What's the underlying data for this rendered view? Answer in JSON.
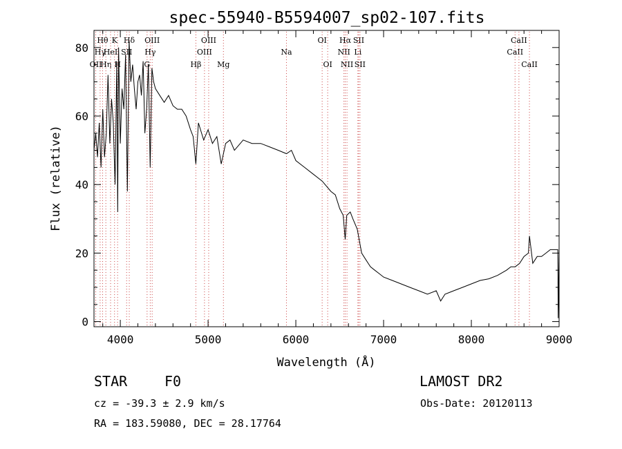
{
  "chart_data": {
    "type": "line",
    "title": "spec-55940-B5594007_sp02-107.fits",
    "xlabel": "Wavelength (Å)",
    "ylabel": "Flux (relative)",
    "xlim": [
      3700,
      9000
    ],
    "ylim": [
      -1.5,
      85
    ],
    "x_ticks": [
      4000,
      5000,
      6000,
      7000,
      8000,
      9000
    ],
    "y_ticks": [
      0,
      20,
      40,
      60,
      80
    ],
    "grid": false,
    "series": [
      {
        "x": [
          3700,
          3720,
          3740,
          3760,
          3780,
          3800,
          3820,
          3840,
          3860,
          3880,
          3900,
          3920,
          3940,
          3960,
          3970,
          3980,
          4000,
          4020,
          4040,
          4060,
          4080,
          4100,
          4120,
          4140,
          4160,
          4180,
          4200,
          4220,
          4240,
          4260,
          4280,
          4300,
          4320,
          4340,
          4360,
          4380,
          4400,
          4450,
          4500,
          4550,
          4600,
          4650,
          4700,
          4750,
          4800,
          4830,
          4861,
          4890,
          4950,
          5000,
          5050,
          5100,
          5150,
          5200,
          5250,
          5300,
          5400,
          5500,
          5600,
          5700,
          5800,
          5893,
          5950,
          6000,
          6100,
          6200,
          6300,
          6400,
          6450,
          6500,
          6540,
          6563,
          6580,
          6620,
          6650,
          6700,
          6750,
          6800,
          6850,
          6900,
          6950,
          7000,
          7100,
          7200,
          7300,
          7400,
          7500,
          7600,
          7650,
          7700,
          7750,
          7800,
          7900,
          8000,
          8100,
          8200,
          8300,
          8400,
          8450,
          8500,
          8550,
          8600,
          8650,
          8662,
          8700,
          8750,
          8800,
          8850,
          8900,
          8950,
          8985,
          8990,
          9000
        ],
        "y": [
          50,
          55,
          48,
          58,
          45,
          62,
          48,
          55,
          72,
          52,
          65,
          58,
          40,
          76,
          32,
          80,
          52,
          68,
          62,
          78,
          38,
          82,
          70,
          75,
          68,
          62,
          70,
          72,
          66,
          76,
          55,
          62,
          75,
          45,
          74,
          70,
          68,
          66,
          64,
          66,
          63,
          62,
          62,
          60,
          56,
          54,
          46,
          58,
          53,
          56,
          52,
          54,
          46,
          52,
          53,
          50,
          53,
          52,
          52,
          51,
          50,
          49,
          50,
          47,
          45,
          43,
          41,
          38,
          37,
          33,
          31,
          24,
          31,
          32,
          30,
          27,
          20,
          18,
          16,
          15,
          14,
          13,
          12,
          11,
          10,
          9,
          8,
          9,
          6,
          8,
          8.5,
          9,
          10,
          11,
          12,
          12.5,
          13.5,
          15,
          16,
          16,
          17,
          19,
          20,
          25,
          17,
          19,
          19,
          20,
          21,
          21,
          21,
          1,
          21
        ]
      }
    ],
    "line_markers": [
      {
        "wl": 3720,
        "label": "OII",
        "row": 2
      },
      {
        "wl": 3770,
        "label": "Hγ",
        "row": 1
      },
      {
        "wl": 3798,
        "label": "Hθ",
        "row": 0
      },
      {
        "wl": 3835,
        "label": "Hη",
        "row": 2
      },
      {
        "wl": 3889,
        "label": "HeI",
        "row": 1
      },
      {
        "wl": 3934,
        "label": "K",
        "row": 0
      },
      {
        "wl": 3969,
        "label": "H",
        "row": 2
      },
      {
        "wl": 4072,
        "label": "SII",
        "row": 1
      },
      {
        "wl": 4102,
        "label": "Hδ",
        "row": 0
      },
      {
        "wl": 4305,
        "label": "G",
        "row": 2
      },
      {
        "wl": 4341,
        "label": "Hγ",
        "row": 1
      },
      {
        "wl": 4363,
        "label": "OIII",
        "row": 0
      },
      {
        "wl": 4861,
        "label": "Hβ",
        "row": 2
      },
      {
        "wl": 4959,
        "label": "OIII",
        "row": 1
      },
      {
        "wl": 5007,
        "label": "OIII",
        "row": 0
      },
      {
        "wl": 5175,
        "label": "Mg",
        "row": 2
      },
      {
        "wl": 5893,
        "label": "Na",
        "row": 1
      },
      {
        "wl": 6300,
        "label": "OI",
        "row": 0
      },
      {
        "wl": 6363,
        "label": "OI",
        "row": 2
      },
      {
        "wl": 6548,
        "label": "NII",
        "row": 1
      },
      {
        "wl": 6563,
        "label": "Hα",
        "row": 0
      },
      {
        "wl": 6583,
        "label": "NII",
        "row": 2
      },
      {
        "wl": 6707,
        "label": "Li",
        "row": 1
      },
      {
        "wl": 6716,
        "label": "SII",
        "row": 0
      },
      {
        "wl": 6731,
        "label": "SII",
        "row": 2
      },
      {
        "wl": 8498,
        "label": "CaII",
        "row": 1
      },
      {
        "wl": 8542,
        "label": "CaII",
        "row": 0
      },
      {
        "wl": 8662,
        "label": "CaII",
        "row": 2
      }
    ]
  },
  "info": {
    "object_class": "STAR",
    "subclass": "F0",
    "survey": "LAMOST DR2",
    "redshift": "cz = -39.3 ± 2.9 km/s",
    "obs_date": "Obs-Date: 20120113",
    "coords": "RA = 183.59080, DEC =  28.17764"
  }
}
